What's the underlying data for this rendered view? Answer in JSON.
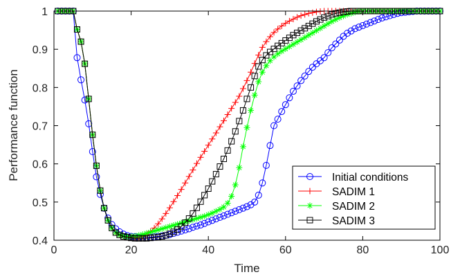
{
  "chart_data": {
    "type": "line",
    "xlabel": "Time",
    "ylabel": "Performance function",
    "xlim": [
      0,
      100
    ],
    "ylim": [
      0.4,
      1.0
    ],
    "xticks": [
      0,
      20,
      40,
      60,
      80,
      100
    ],
    "yticks": [
      0.4,
      0.5,
      0.6,
      0.7,
      0.8,
      0.9,
      1
    ],
    "ytick_labels": [
      "0.4",
      "0.5",
      "0.6",
      "0.7",
      "0.8",
      "0.9",
      "1"
    ],
    "grid": false,
    "legend_position": "bottom-right",
    "series": [
      {
        "name": "Initial conditions",
        "color": "#0000ff",
        "marker": "circle",
        "x": [
          1,
          2,
          3,
          4,
          5,
          6,
          7,
          8,
          9,
          10,
          11,
          12,
          13,
          14,
          15,
          16,
          17,
          18,
          19,
          20,
          21,
          22,
          23,
          24,
          25,
          26,
          27,
          28,
          29,
          30,
          31,
          32,
          33,
          34,
          35,
          36,
          37,
          38,
          39,
          40,
          41,
          42,
          43,
          44,
          45,
          46,
          47,
          48,
          49,
          50,
          51,
          52,
          53,
          54,
          55,
          56,
          57,
          58,
          59,
          60,
          61,
          62,
          63,
          64,
          65,
          66,
          67,
          68,
          69,
          70,
          71,
          72,
          73,
          74,
          75,
          76,
          77,
          78,
          79,
          80,
          81,
          82,
          83,
          84,
          85,
          86,
          87,
          88,
          89,
          90,
          91,
          92,
          93,
          94,
          95,
          96,
          97,
          98,
          99,
          100
        ],
        "y": [
          1,
          1,
          1,
          1,
          1,
          0.878,
          0.82,
          0.767,
          0.705,
          0.632,
          0.566,
          0.52,
          0.484,
          0.458,
          0.441,
          0.43,
          0.422,
          0.416,
          0.412,
          0.41,
          0.409,
          0.408,
          0.408,
          0.408,
          0.408,
          0.409,
          0.41,
          0.411,
          0.413,
          0.415,
          0.418,
          0.421,
          0.424,
          0.427,
          0.43,
          0.434,
          0.437,
          0.44,
          0.444,
          0.448,
          0.452,
          0.456,
          0.46,
          0.464,
          0.468,
          0.472,
          0.476,
          0.48,
          0.484,
          0.488,
          0.493,
          0.5,
          0.518,
          0.55,
          0.596,
          0.648,
          0.7,
          0.717,
          0.737,
          0.755,
          0.773,
          0.79,
          0.804,
          0.818,
          0.83,
          0.842,
          0.853,
          0.862,
          0.87,
          0.878,
          0.891,
          0.904,
          0.914,
          0.924,
          0.934,
          0.942,
          0.948,
          0.954,
          0.958,
          0.962,
          0.966,
          0.97,
          0.974,
          0.978,
          0.982,
          0.985,
          0.988,
          0.991,
          0.994,
          0.996,
          0.997,
          0.998,
          0.999,
          1,
          1,
          1,
          1,
          1,
          1,
          1
        ]
      },
      {
        "name": "SADIM 1",
        "color": "#ff0000",
        "marker": "plus",
        "x": [
          1,
          2,
          3,
          4,
          5,
          6,
          7,
          8,
          9,
          10,
          11,
          12,
          13,
          14,
          15,
          16,
          17,
          18,
          19,
          20,
          21,
          22,
          23,
          24,
          25,
          26,
          27,
          28,
          29,
          30,
          31,
          32,
          33,
          34,
          35,
          36,
          37,
          38,
          39,
          40,
          41,
          42,
          43,
          44,
          45,
          46,
          47,
          48,
          49,
          50,
          51,
          52,
          53,
          54,
          55,
          56,
          57,
          58,
          59,
          60,
          61,
          62,
          63,
          64,
          65,
          66,
          67,
          68,
          69,
          70,
          71,
          72,
          73,
          74,
          75,
          76,
          77,
          78,
          79,
          80,
          81,
          82,
          83,
          84,
          85,
          86,
          87,
          88,
          89,
          90,
          91,
          92,
          93,
          94,
          95,
          96,
          97,
          98,
          99,
          100
        ],
        "y": [
          1,
          1,
          1,
          1,
          1,
          0.952,
          0.92,
          0.862,
          0.77,
          0.676,
          0.595,
          0.53,
          0.484,
          0.452,
          0.432,
          0.42,
          0.414,
          0.41,
          0.408,
          0.407,
          0.407,
          0.408,
          0.41,
          0.415,
          0.423,
          0.432,
          0.443,
          0.456,
          0.47,
          0.485,
          0.501,
          0.517,
          0.533,
          0.55,
          0.567,
          0.584,
          0.601,
          0.617,
          0.633,
          0.649,
          0.665,
          0.681,
          0.697,
          0.713,
          0.729,
          0.745,
          0.761,
          0.777,
          0.797,
          0.818,
          0.84,
          0.863,
          0.885,
          0.905,
          0.92,
          0.933,
          0.944,
          0.953,
          0.961,
          0.968,
          0.974,
          0.979,
          0.984,
          0.988,
          0.991,
          0.994,
          0.996,
          0.998,
          0.999,
          1,
          1,
          1,
          1,
          1,
          1,
          1,
          1,
          1,
          1,
          1,
          1,
          1,
          1,
          1,
          1,
          1,
          1,
          1,
          1,
          1,
          1,
          1,
          1,
          1,
          1,
          1,
          1,
          1,
          1,
          1
        ]
      },
      {
        "name": "SADIM 2",
        "color": "#00ff00",
        "marker": "asterisk",
        "x": [
          1,
          2,
          3,
          4,
          5,
          6,
          7,
          8,
          9,
          10,
          11,
          12,
          13,
          14,
          15,
          16,
          17,
          18,
          19,
          20,
          21,
          22,
          23,
          24,
          25,
          26,
          27,
          28,
          29,
          30,
          31,
          32,
          33,
          34,
          35,
          36,
          37,
          38,
          39,
          40,
          41,
          42,
          43,
          44,
          45,
          46,
          47,
          48,
          49,
          50,
          51,
          52,
          53,
          54,
          55,
          56,
          57,
          58,
          59,
          60,
          61,
          62,
          63,
          64,
          65,
          66,
          67,
          68,
          69,
          70,
          71,
          72,
          73,
          74,
          75,
          76,
          77,
          78,
          79,
          80,
          81,
          82,
          83,
          84,
          85,
          86,
          87,
          88,
          89,
          90,
          91,
          92,
          93,
          94,
          95,
          96,
          97,
          98,
          99,
          100
        ],
        "y": [
          1,
          1,
          1,
          1,
          1,
          0.952,
          0.92,
          0.862,
          0.77,
          0.676,
          0.595,
          0.53,
          0.484,
          0.452,
          0.432,
          0.42,
          0.414,
          0.411,
          0.41,
          0.41,
          0.411,
          0.413,
          0.415,
          0.418,
          0.421,
          0.424,
          0.427,
          0.43,
          0.433,
          0.436,
          0.439,
          0.442,
          0.445,
          0.448,
          0.451,
          0.454,
          0.457,
          0.46,
          0.463,
          0.467,
          0.471,
          0.476,
          0.481,
          0.487,
          0.497,
          0.515,
          0.545,
          0.59,
          0.645,
          0.695,
          0.74,
          0.78,
          0.815,
          0.84,
          0.857,
          0.87,
          0.88,
          0.888,
          0.895,
          0.901,
          0.907,
          0.913,
          0.919,
          0.925,
          0.931,
          0.937,
          0.943,
          0.949,
          0.955,
          0.961,
          0.967,
          0.973,
          0.978,
          0.983,
          0.987,
          0.991,
          0.994,
          0.997,
          0.999,
          1,
          1,
          1,
          1,
          1,
          1,
          1,
          1,
          1,
          1,
          1,
          1,
          1,
          1,
          1,
          1,
          1,
          1,
          1,
          1,
          1
        ]
      },
      {
        "name": "SADIM 3",
        "color": "#000000",
        "marker": "square",
        "x": [
          1,
          2,
          3,
          4,
          5,
          6,
          7,
          8,
          9,
          10,
          11,
          12,
          13,
          14,
          15,
          16,
          17,
          18,
          19,
          20,
          21,
          22,
          23,
          24,
          25,
          26,
          27,
          28,
          29,
          30,
          31,
          32,
          33,
          34,
          35,
          36,
          37,
          38,
          39,
          40,
          41,
          42,
          43,
          44,
          45,
          46,
          47,
          48,
          49,
          50,
          51,
          52,
          53,
          54,
          55,
          56,
          57,
          58,
          59,
          60,
          61,
          62,
          63,
          64,
          65,
          66,
          67,
          68,
          69,
          70,
          71,
          72,
          73,
          74,
          75,
          76,
          77,
          78,
          79,
          80,
          81,
          82,
          83,
          84,
          85,
          86,
          87,
          88,
          89,
          90,
          91,
          92,
          93,
          94,
          95,
          96,
          97,
          98,
          99,
          100
        ],
        "y": [
          1,
          1,
          1,
          1,
          1,
          0.952,
          0.92,
          0.862,
          0.77,
          0.676,
          0.595,
          0.53,
          0.484,
          0.452,
          0.432,
          0.42,
          0.414,
          0.41,
          0.408,
          0.406,
          0.405,
          0.405,
          0.405,
          0.405,
          0.406,
          0.407,
          0.408,
          0.41,
          0.413,
          0.417,
          0.422,
          0.428,
          0.436,
          0.446,
          0.457,
          0.47,
          0.485,
          0.501,
          0.518,
          0.535,
          0.554,
          0.573,
          0.593,
          0.613,
          0.635,
          0.659,
          0.685,
          0.712,
          0.74,
          0.77,
          0.8,
          0.83,
          0.855,
          0.872,
          0.884,
          0.893,
          0.901,
          0.909,
          0.916,
          0.923,
          0.93,
          0.937,
          0.943,
          0.949,
          0.955,
          0.961,
          0.967,
          0.973,
          0.978,
          0.983,
          0.987,
          0.991,
          0.994,
          0.996,
          0.998,
          0.999,
          1,
          1,
          1,
          1,
          1,
          1,
          1,
          1,
          1,
          1,
          1,
          1,
          1,
          1,
          1,
          1,
          1,
          1,
          1,
          1,
          1,
          1,
          1,
          1
        ]
      }
    ]
  }
}
